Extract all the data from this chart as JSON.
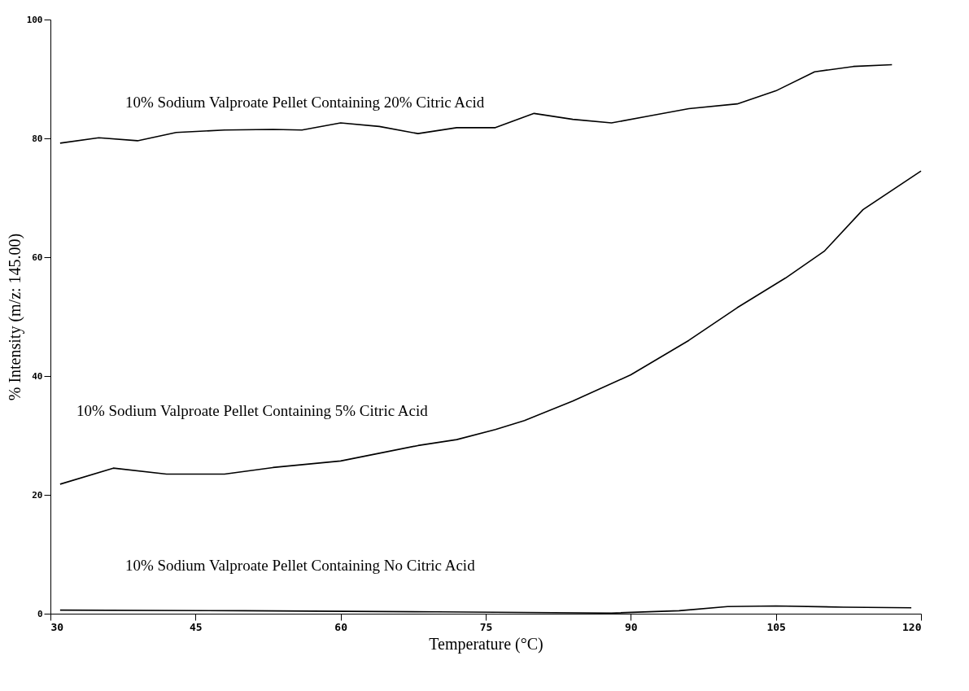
{
  "chart_data": {
    "type": "line",
    "xlabel": "Temperature (°C)",
    "ylabel": "% Intensity  (m/z: 145.00)",
    "xlim": [
      30,
      120
    ],
    "xticks": [
      30,
      45,
      60,
      75,
      90,
      105,
      120
    ],
    "ylim": [
      0,
      100
    ],
    "yticks": [
      0,
      20,
      40,
      60,
      80,
      100
    ],
    "grid": false,
    "legend": false,
    "series": [
      {
        "name": "10% Sodium Valproate Pellet Containing 20% Citric Acid",
        "color": "#000000",
        "x": [
          31,
          35,
          39,
          43,
          48,
          53,
          56,
          60,
          64,
          68,
          72,
          76,
          80,
          84,
          88,
          92,
          96,
          101,
          105,
          109,
          113,
          117
        ],
        "values": [
          79.2,
          80.1,
          79.6,
          81,
          81.4,
          81.5,
          81.4,
          82.6,
          82,
          80.8,
          81.8,
          81.8,
          84.2,
          83.2,
          82.6,
          83.8,
          85,
          85.8,
          88,
          91.2,
          92.1,
          92.4
        ]
      },
      {
        "name": "10% Sodium Valproate Pellet Containing 5% Citric Acid",
        "color": "#000000",
        "x": [
          31,
          36.5,
          42,
          48,
          53,
          60,
          64,
          68,
          72,
          76,
          79,
          84,
          90,
          96,
          101,
          106,
          110,
          114,
          120
        ],
        "values": [
          21.8,
          24.5,
          23.5,
          23.5,
          24.6,
          25.7,
          27,
          28.3,
          29.3,
          31,
          32.5,
          35.8,
          40.2,
          46,
          51.5,
          56.5,
          61,
          68,
          74.5
        ]
      },
      {
        "name": "10% Sodium Valproate Pellet Containing No Citric Acid",
        "color": "#000000",
        "x": [
          31,
          50,
          70,
          88,
          95,
          100,
          105,
          112,
          119
        ],
        "values": [
          0.6,
          0.5,
          0.3,
          0.1,
          0.5,
          1.2,
          1.3,
          1.1,
          1.0
        ]
      }
    ]
  }
}
